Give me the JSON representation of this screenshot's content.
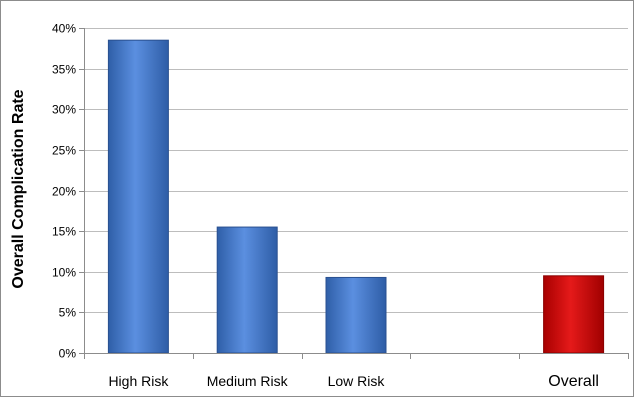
{
  "chart_data": {
    "type": "bar",
    "ylabel": "Overall Complication Rate",
    "xlabel": "",
    "title": "",
    "ylim": [
      0,
      40
    ],
    "yticks": [
      0,
      5,
      10,
      15,
      20,
      25,
      30,
      35,
      40
    ],
    "ytick_labels": [
      "0%",
      "5%",
      "10%",
      "15%",
      "20%",
      "25%",
      "30%",
      "35%",
      "40%"
    ],
    "grid": true,
    "categories": [
      "High Risk",
      "Medium Risk",
      "Low Risk",
      "",
      "Overall"
    ],
    "values": [
      38.5,
      15.5,
      9.3,
      null,
      9.5
    ],
    "bar_colors": [
      "#3a6fc0",
      "#3a6fc0",
      "#3a6fc0",
      null,
      "#c00000"
    ]
  }
}
